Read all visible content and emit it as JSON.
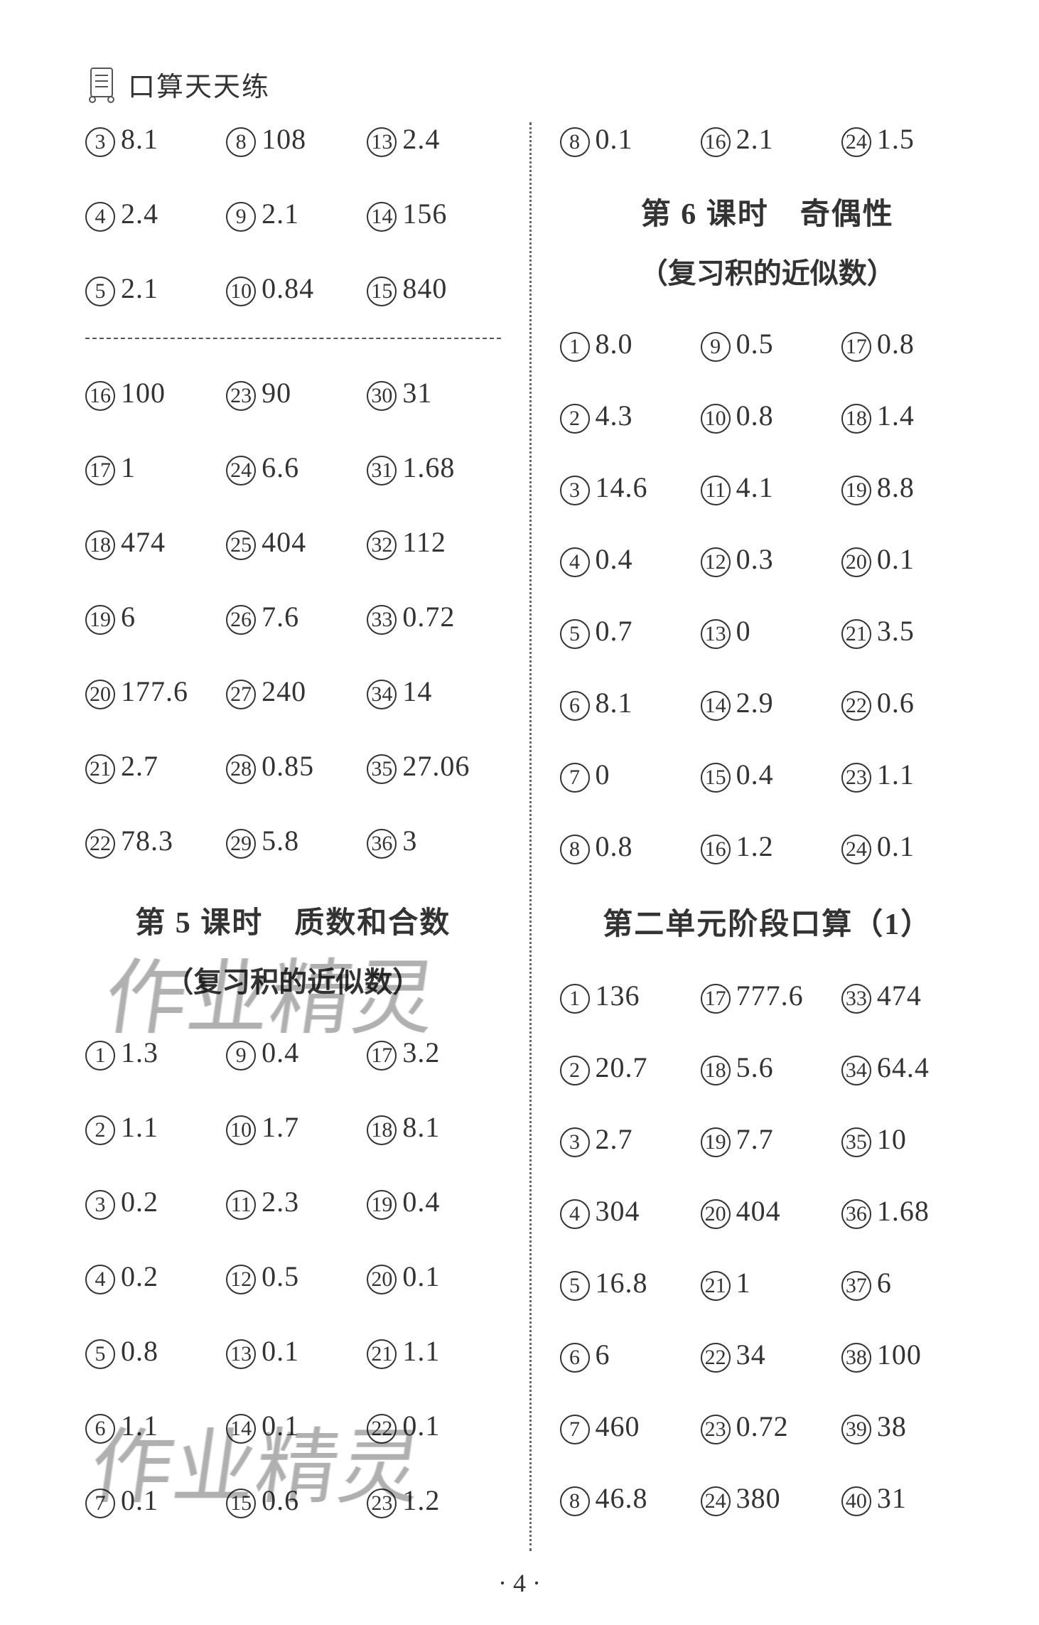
{
  "header": {
    "title": "口算天天练"
  },
  "colors": {
    "text": "#333333",
    "bg": "#ffffff",
    "divider": "#666666",
    "dashed": "#555555",
    "watermark_rgba": "rgba(0,0,0,0.14)"
  },
  "pagenum": "· 4 ·",
  "watermark": "作业精灵",
  "left": {
    "block_a": [
      {
        "n": "3",
        "v": "8.1"
      },
      {
        "n": "8",
        "v": "108"
      },
      {
        "n": "13",
        "v": "2.4"
      },
      {
        "n": "4",
        "v": "2.4"
      },
      {
        "n": "9",
        "v": "2.1"
      },
      {
        "n": "14",
        "v": "156"
      },
      {
        "n": "5",
        "v": "2.1"
      },
      {
        "n": "10",
        "v": "0.84"
      },
      {
        "n": "15",
        "v": "840"
      }
    ],
    "block_b": [
      {
        "n": "16",
        "v": "100"
      },
      {
        "n": "23",
        "v": "90"
      },
      {
        "n": "30",
        "v": "31"
      },
      {
        "n": "17",
        "v": "1"
      },
      {
        "n": "24",
        "v": "6.6"
      },
      {
        "n": "31",
        "v": "1.68"
      },
      {
        "n": "18",
        "v": "474"
      },
      {
        "n": "25",
        "v": "404"
      },
      {
        "n": "32",
        "v": "112"
      },
      {
        "n": "19",
        "v": "6"
      },
      {
        "n": "26",
        "v": "7.6"
      },
      {
        "n": "33",
        "v": "0.72"
      },
      {
        "n": "20",
        "v": "177.6"
      },
      {
        "n": "27",
        "v": "240"
      },
      {
        "n": "34",
        "v": "14"
      },
      {
        "n": "21",
        "v": "2.7"
      },
      {
        "n": "28",
        "v": "0.85"
      },
      {
        "n": "35",
        "v": "27.06"
      },
      {
        "n": "22",
        "v": "78.3"
      },
      {
        "n": "29",
        "v": "5.8"
      },
      {
        "n": "36",
        "v": "3"
      }
    ],
    "section5_title": "第 5 课时　质数和合数",
    "section5_sub": "（复习积的近似数）",
    "block_c": [
      {
        "n": "1",
        "v": "1.3"
      },
      {
        "n": "9",
        "v": "0.4"
      },
      {
        "n": "17",
        "v": "3.2"
      },
      {
        "n": "2",
        "v": "1.1"
      },
      {
        "n": "10",
        "v": "1.7"
      },
      {
        "n": "18",
        "v": "8.1"
      },
      {
        "n": "3",
        "v": "0.2"
      },
      {
        "n": "11",
        "v": "2.3"
      },
      {
        "n": "19",
        "v": "0.4"
      },
      {
        "n": "4",
        "v": "0.2"
      },
      {
        "n": "12",
        "v": "0.5"
      },
      {
        "n": "20",
        "v": "0.1"
      },
      {
        "n": "5",
        "v": "0.8"
      },
      {
        "n": "13",
        "v": "0.1"
      },
      {
        "n": "21",
        "v": "1.1"
      },
      {
        "n": "6",
        "v": "1.1"
      },
      {
        "n": "14",
        "v": "0.1"
      },
      {
        "n": "22",
        "v": "0.1"
      },
      {
        "n": "7",
        "v": "0.1"
      },
      {
        "n": "15",
        "v": "0.6"
      },
      {
        "n": "23",
        "v": "1.2"
      }
    ]
  },
  "right": {
    "top_row": [
      {
        "n": "8",
        "v": "0.1"
      },
      {
        "n": "16",
        "v": "2.1"
      },
      {
        "n": "24",
        "v": "1.5"
      }
    ],
    "section6_title": "第 6 课时　奇偶性",
    "section6_sub": "（复习积的近似数）",
    "block_d": [
      {
        "n": "1",
        "v": "8.0"
      },
      {
        "n": "9",
        "v": "0.5"
      },
      {
        "n": "17",
        "v": "0.8"
      },
      {
        "n": "2",
        "v": "4.3"
      },
      {
        "n": "10",
        "v": "0.8"
      },
      {
        "n": "18",
        "v": "1.4"
      },
      {
        "n": "3",
        "v": "14.6"
      },
      {
        "n": "11",
        "v": "4.1"
      },
      {
        "n": "19",
        "v": "8.8"
      },
      {
        "n": "4",
        "v": "0.4"
      },
      {
        "n": "12",
        "v": "0.3"
      },
      {
        "n": "20",
        "v": "0.1"
      },
      {
        "n": "5",
        "v": "0.7"
      },
      {
        "n": "13",
        "v": "0"
      },
      {
        "n": "21",
        "v": "3.5"
      },
      {
        "n": "6",
        "v": "8.1"
      },
      {
        "n": "14",
        "v": "2.9"
      },
      {
        "n": "22",
        "v": "0.6"
      },
      {
        "n": "7",
        "v": "0"
      },
      {
        "n": "15",
        "v": "0.4"
      },
      {
        "n": "23",
        "v": "1.1"
      },
      {
        "n": "8",
        "v": "0.8"
      },
      {
        "n": "16",
        "v": "1.2"
      },
      {
        "n": "24",
        "v": "0.1"
      }
    ],
    "unit2_title": "第二单元阶段口算（1）",
    "block_e": [
      {
        "n": "1",
        "v": "136"
      },
      {
        "n": "17",
        "v": "777.6"
      },
      {
        "n": "33",
        "v": "474"
      },
      {
        "n": "2",
        "v": "20.7"
      },
      {
        "n": "18",
        "v": "5.6"
      },
      {
        "n": "34",
        "v": "64.4"
      },
      {
        "n": "3",
        "v": "2.7"
      },
      {
        "n": "19",
        "v": "7.7"
      },
      {
        "n": "35",
        "v": "10"
      },
      {
        "n": "4",
        "v": "304"
      },
      {
        "n": "20",
        "v": "404"
      },
      {
        "n": "36",
        "v": "1.68"
      },
      {
        "n": "5",
        "v": "16.8"
      },
      {
        "n": "21",
        "v": "1"
      },
      {
        "n": "37",
        "v": "6"
      },
      {
        "n": "6",
        "v": "6"
      },
      {
        "n": "22",
        "v": "34"
      },
      {
        "n": "38",
        "v": "100"
      },
      {
        "n": "7",
        "v": "460"
      },
      {
        "n": "23",
        "v": "0.72"
      },
      {
        "n": "39",
        "v": "38"
      },
      {
        "n": "8",
        "v": "46.8"
      },
      {
        "n": "24",
        "v": "380"
      },
      {
        "n": "40",
        "v": "31"
      }
    ]
  }
}
